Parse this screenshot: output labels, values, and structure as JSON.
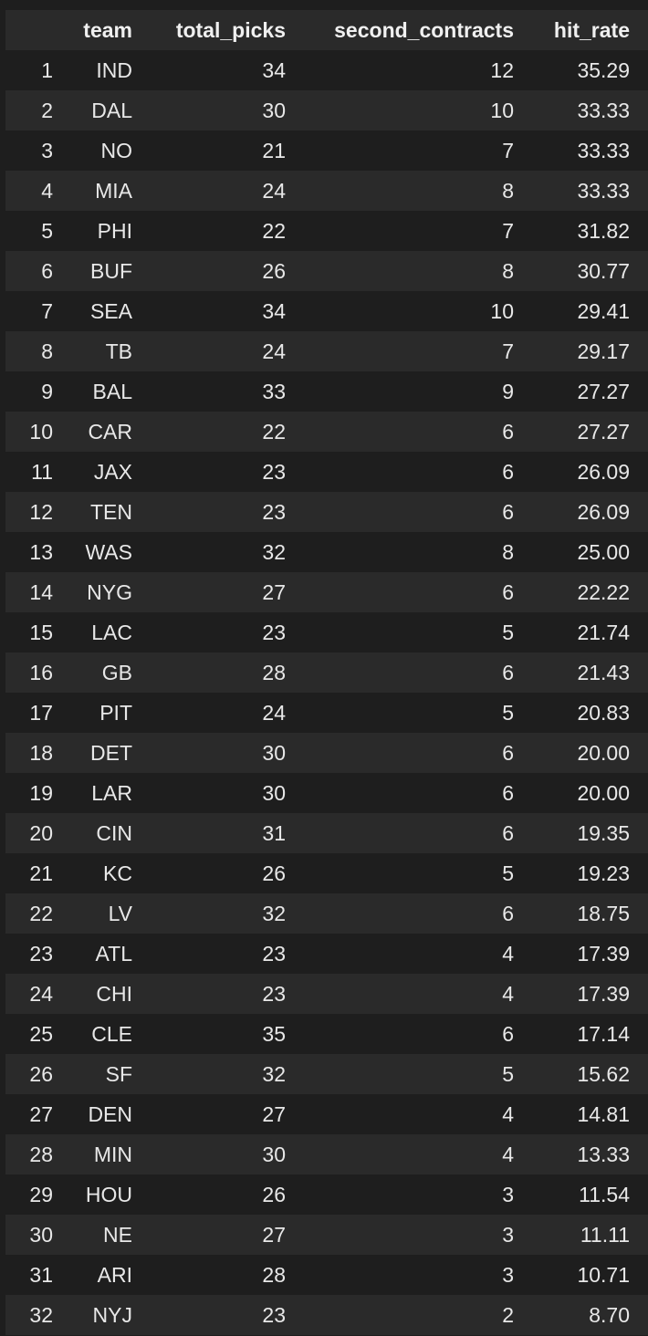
{
  "columns": [
    "",
    "team",
    "total_picks",
    "second_contracts",
    "hit_rate"
  ],
  "rows": [
    {
      "index": "1",
      "team": "IND",
      "total_picks": "34",
      "second_contracts": "12",
      "hit_rate": "35.29"
    },
    {
      "index": "2",
      "team": "DAL",
      "total_picks": "30",
      "second_contracts": "10",
      "hit_rate": "33.33"
    },
    {
      "index": "3",
      "team": "NO",
      "total_picks": "21",
      "second_contracts": "7",
      "hit_rate": "33.33"
    },
    {
      "index": "4",
      "team": "MIA",
      "total_picks": "24",
      "second_contracts": "8",
      "hit_rate": "33.33"
    },
    {
      "index": "5",
      "team": "PHI",
      "total_picks": "22",
      "second_contracts": "7",
      "hit_rate": "31.82"
    },
    {
      "index": "6",
      "team": "BUF",
      "total_picks": "26",
      "second_contracts": "8",
      "hit_rate": "30.77"
    },
    {
      "index": "7",
      "team": "SEA",
      "total_picks": "34",
      "second_contracts": "10",
      "hit_rate": "29.41"
    },
    {
      "index": "8",
      "team": "TB",
      "total_picks": "24",
      "second_contracts": "7",
      "hit_rate": "29.17"
    },
    {
      "index": "9",
      "team": "BAL",
      "total_picks": "33",
      "second_contracts": "9",
      "hit_rate": "27.27"
    },
    {
      "index": "10",
      "team": "CAR",
      "total_picks": "22",
      "second_contracts": "6",
      "hit_rate": "27.27"
    },
    {
      "index": "11",
      "team": "JAX",
      "total_picks": "23",
      "second_contracts": "6",
      "hit_rate": "26.09"
    },
    {
      "index": "12",
      "team": "TEN",
      "total_picks": "23",
      "second_contracts": "6",
      "hit_rate": "26.09"
    },
    {
      "index": "13",
      "team": "WAS",
      "total_picks": "32",
      "second_contracts": "8",
      "hit_rate": "25.00"
    },
    {
      "index": "14",
      "team": "NYG",
      "total_picks": "27",
      "second_contracts": "6",
      "hit_rate": "22.22"
    },
    {
      "index": "15",
      "team": "LAC",
      "total_picks": "23",
      "second_contracts": "5",
      "hit_rate": "21.74"
    },
    {
      "index": "16",
      "team": "GB",
      "total_picks": "28",
      "second_contracts": "6",
      "hit_rate": "21.43"
    },
    {
      "index": "17",
      "team": "PIT",
      "total_picks": "24",
      "second_contracts": "5",
      "hit_rate": "20.83"
    },
    {
      "index": "18",
      "team": "DET",
      "total_picks": "30",
      "second_contracts": "6",
      "hit_rate": "20.00"
    },
    {
      "index": "19",
      "team": "LAR",
      "total_picks": "30",
      "second_contracts": "6",
      "hit_rate": "20.00"
    },
    {
      "index": "20",
      "team": "CIN",
      "total_picks": "31",
      "second_contracts": "6",
      "hit_rate": "19.35"
    },
    {
      "index": "21",
      "team": "KC",
      "total_picks": "26",
      "second_contracts": "5",
      "hit_rate": "19.23"
    },
    {
      "index": "22",
      "team": "LV",
      "total_picks": "32",
      "second_contracts": "6",
      "hit_rate": "18.75"
    },
    {
      "index": "23",
      "team": "ATL",
      "total_picks": "23",
      "second_contracts": "4",
      "hit_rate": "17.39"
    },
    {
      "index": "24",
      "team": "CHI",
      "total_picks": "23",
      "second_contracts": "4",
      "hit_rate": "17.39"
    },
    {
      "index": "25",
      "team": "CLE",
      "total_picks": "35",
      "second_contracts": "6",
      "hit_rate": "17.14"
    },
    {
      "index": "26",
      "team": "SF",
      "total_picks": "32",
      "second_contracts": "5",
      "hit_rate": "15.62"
    },
    {
      "index": "27",
      "team": "DEN",
      "total_picks": "27",
      "second_contracts": "4",
      "hit_rate": "14.81"
    },
    {
      "index": "28",
      "team": "MIN",
      "total_picks": "30",
      "second_contracts": "4",
      "hit_rate": "13.33"
    },
    {
      "index": "29",
      "team": "HOU",
      "total_picks": "26",
      "second_contracts": "3",
      "hit_rate": "11.54"
    },
    {
      "index": "30",
      "team": "NE",
      "total_picks": "27",
      "second_contracts": "3",
      "hit_rate": "11.11"
    },
    {
      "index": "31",
      "team": "ARI",
      "total_picks": "28",
      "second_contracts": "3",
      "hit_rate": "10.71"
    },
    {
      "index": "32",
      "team": "NYJ",
      "total_picks": "23",
      "second_contracts": "2",
      "hit_rate": "8.70"
    }
  ],
  "colors": {
    "background": "#1e1e1e",
    "stripe": "#2a2a2a",
    "text": "#e8e8e8"
  }
}
